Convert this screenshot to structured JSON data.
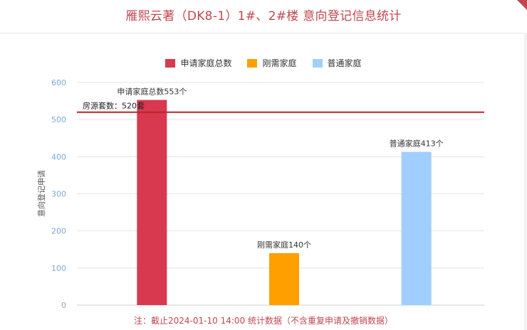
{
  "header": {
    "title": "雁熙云著（DK8-1）1#、2#楼 意向登记信息统计"
  },
  "chart_data": {
    "type": "bar",
    "categories": [
      "申请家庭总数",
      "刚需家庭",
      "普通家庭"
    ],
    "series": [
      {
        "name": "申请家庭总数",
        "values": [
          553,
          null,
          null
        ],
        "color": "#d9394f",
        "label": "申请家庭总数553个"
      },
      {
        "name": "刚需家庭",
        "values": [
          null,
          140,
          null
        ],
        "color": "#ff9f00",
        "label": "刚需家庭140个"
      },
      {
        "name": "普通家庭",
        "values": [
          null,
          null,
          413
        ],
        "color": "#9fceff",
        "label": "普通家庭413个"
      }
    ],
    "ylabel": "意向登记申请",
    "ylim": [
      0,
      600
    ],
    "yticks": [
      0,
      100,
      200,
      300,
      400,
      500,
      600
    ],
    "grid": true,
    "legend_position": "top-center",
    "reference_line": {
      "value": 520,
      "label": "房源套数：520套",
      "color": "#c0202a"
    }
  },
  "footnote": "注：截止2024-01-10 14:00 统计数据（不含重复申请及撤销数据）"
}
